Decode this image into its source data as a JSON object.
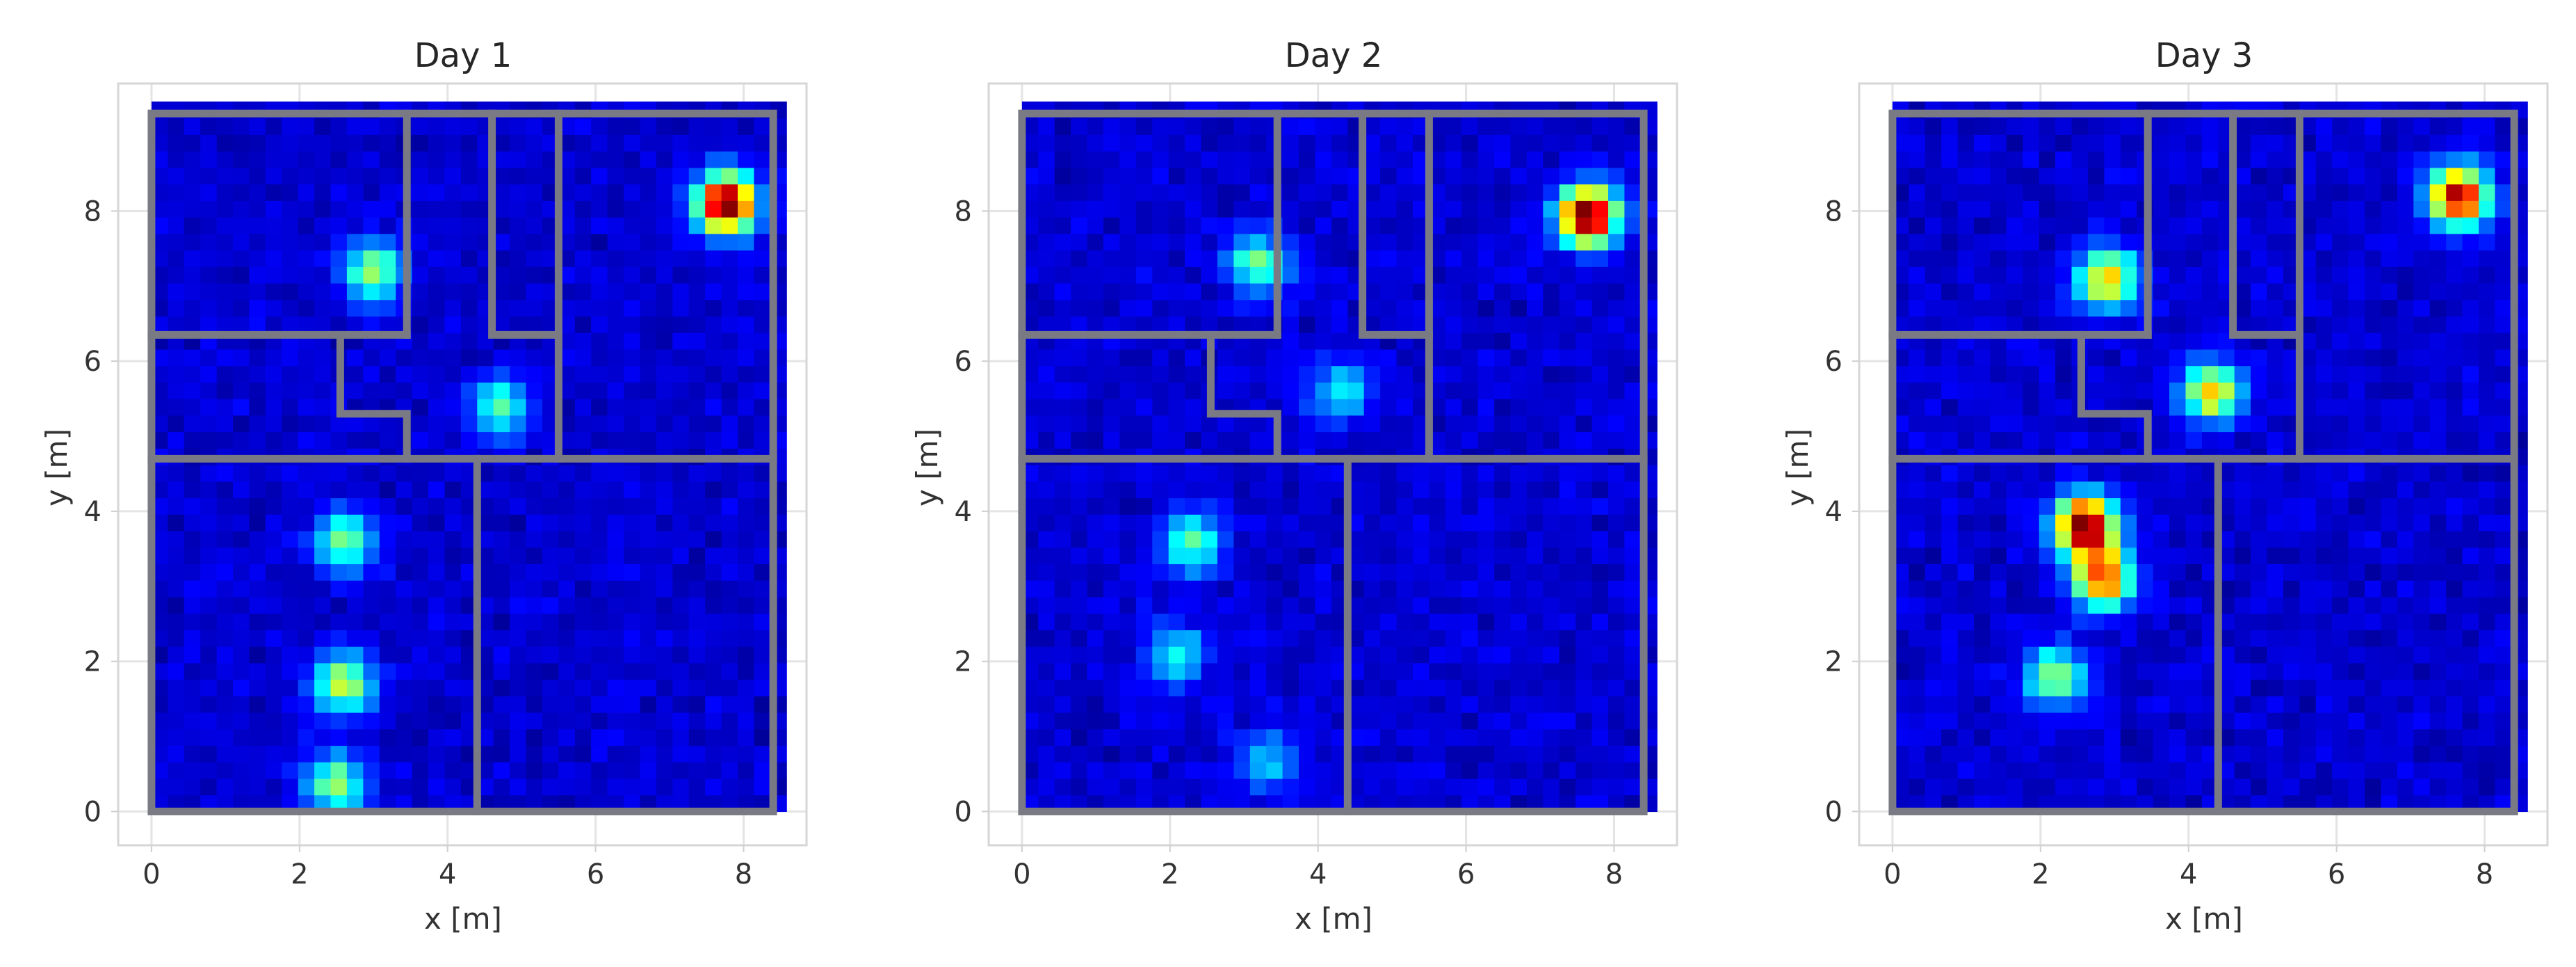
{
  "chart_data": [
    {
      "type": "heatmap",
      "title": "Day 1",
      "xlabel": "x [m]",
      "ylabel": "y [m]",
      "xlim": [
        -0.45,
        8.85
      ],
      "ylim": [
        -0.45,
        9.7
      ],
      "xticks": [
        0,
        2,
        4,
        6,
        8
      ],
      "yticks": [
        0,
        2,
        4,
        6,
        8
      ],
      "grid": true,
      "colormap": "jet",
      "hotspots": [
        {
          "x": 7.75,
          "y": 8.1,
          "intensity": 1.0
        },
        {
          "x": 3.0,
          "y": 7.2,
          "intensity": 0.45
        },
        {
          "x": 4.7,
          "y": 5.4,
          "intensity": 0.38
        },
        {
          "x": 2.6,
          "y": 3.6,
          "intensity": 0.42
        },
        {
          "x": 2.6,
          "y": 1.7,
          "intensity": 0.5
        },
        {
          "x": 2.5,
          "y": 0.35,
          "intensity": 0.45
        }
      ]
    },
    {
      "type": "heatmap",
      "title": "Day 2",
      "xlabel": "x [m]",
      "ylabel": "y [m]",
      "xlim": [
        -0.45,
        8.85
      ],
      "ylim": [
        -0.45,
        9.7
      ],
      "xticks": [
        0,
        2,
        4,
        6,
        8
      ],
      "yticks": [
        0,
        2,
        4,
        6,
        8
      ],
      "grid": true,
      "colormap": "jet",
      "hotspots": [
        {
          "x": 7.65,
          "y": 7.95,
          "intensity": 1.0
        },
        {
          "x": 3.2,
          "y": 7.3,
          "intensity": 0.42
        },
        {
          "x": 4.3,
          "y": 5.6,
          "intensity": 0.3
        },
        {
          "x": 2.3,
          "y": 3.6,
          "intensity": 0.4
        },
        {
          "x": 2.1,
          "y": 2.1,
          "intensity": 0.3
        },
        {
          "x": 3.3,
          "y": 0.7,
          "intensity": 0.25
        }
      ]
    },
    {
      "type": "heatmap",
      "title": "Day 3",
      "xlabel": "x [m]",
      "ylabel": "y [m]",
      "xlim": [
        -0.45,
        8.85
      ],
      "ylim": [
        -0.45,
        9.7
      ],
      "xticks": [
        0,
        2,
        4,
        6,
        8
      ],
      "yticks": [
        0,
        2,
        4,
        6,
        8
      ],
      "grid": true,
      "colormap": "jet",
      "hotspots": [
        {
          "x": 7.65,
          "y": 8.2,
          "intensity": 0.9
        },
        {
          "x": 2.9,
          "y": 7.1,
          "intensity": 0.62
        },
        {
          "x": 4.3,
          "y": 5.6,
          "intensity": 0.6
        },
        {
          "x": 2.6,
          "y": 3.8,
          "intensity": 1.0
        },
        {
          "x": 2.85,
          "y": 3.1,
          "intensity": 0.75
        },
        {
          "x": 2.2,
          "y": 1.8,
          "intensity": 0.45
        }
      ]
    }
  ],
  "floor_plan": {
    "outline": [
      [
        0,
        0
      ],
      [
        8.4,
        9.3
      ]
    ],
    "wall_color": "#7a7a85",
    "walls": [
      [
        [
          0,
          4.7
        ],
        [
          8.4,
          4.7
        ]
      ],
      [
        [
          4.4,
          0
        ],
        [
          4.4,
          4.7
        ]
      ],
      [
        [
          5.5,
          4.7
        ],
        [
          5.5,
          9.3
        ]
      ],
      [
        [
          0,
          6.35
        ],
        [
          3.45,
          6.35
        ]
      ],
      [
        [
          3.45,
          6.35
        ],
        [
          3.45,
          9.3
        ]
      ],
      [
        [
          2.55,
          6.35
        ],
        [
          2.55,
          5.3
        ],
        [
          3.45,
          5.3
        ],
        [
          3.45,
          4.7
        ]
      ],
      [
        [
          4.6,
          9.3
        ],
        [
          4.6,
          6.35
        ],
        [
          5.5,
          6.35
        ]
      ]
    ]
  },
  "colors": {
    "background": "#ffffff",
    "heatmap_low": "#00007f",
    "heatmap_high": "#7f0000"
  }
}
